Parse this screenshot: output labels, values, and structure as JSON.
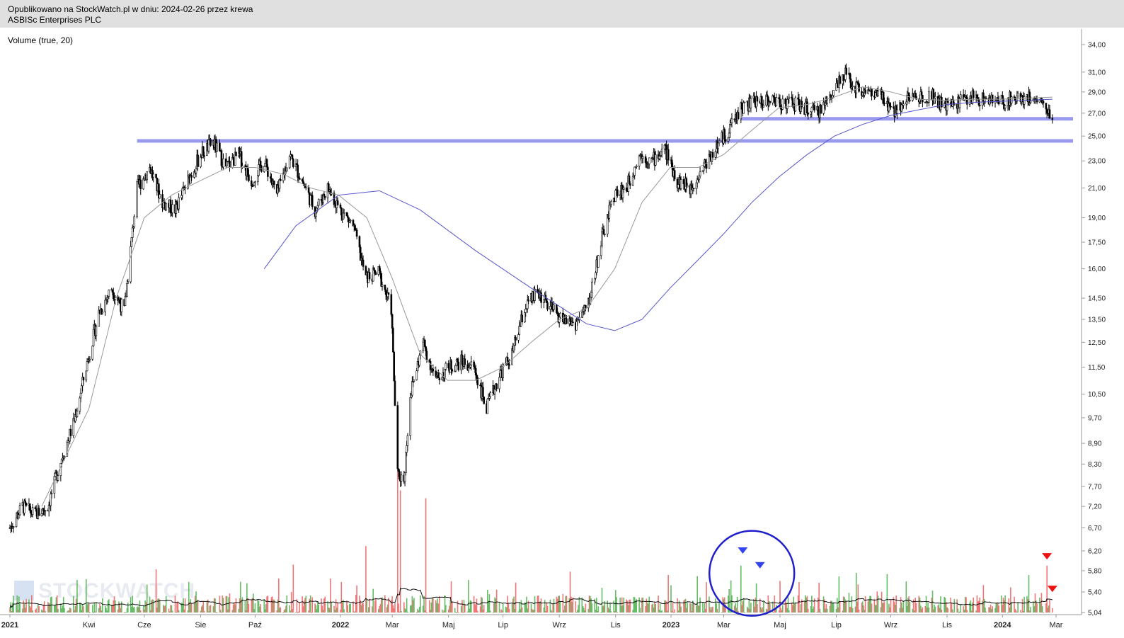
{
  "header": {
    "line1": "Opublikowano na StockWatch.pl w dniu: 2024-02-26 przez krewa",
    "line2": "ASBISc Enterprises PLC"
  },
  "indicator_label": "Volume (true, 20)",
  "watermark": "STOCKWATCH",
  "chart_data": {
    "type": "candlestick",
    "title": "ASBISc Enterprises PLC",
    "y_scale": "log",
    "y_ticks": [
      "34,00",
      "31,00",
      "29,00",
      "27,00",
      "25,00",
      "23,00",
      "21,00",
      "19,00",
      "17,50",
      "16,00",
      "14,50",
      "13,50",
      "12,50",
      "11,50",
      "10,50",
      "9,70",
      "8,90",
      "8,30",
      "7,70",
      "7,20",
      "6,70",
      "6,20",
      "5,80",
      "5,40",
      "5,04"
    ],
    "y_tick_values": [
      34.0,
      31.0,
      29.0,
      27.0,
      25.0,
      23.0,
      21.0,
      19.0,
      17.5,
      16.0,
      14.5,
      13.5,
      12.5,
      11.5,
      10.5,
      9.7,
      8.9,
      8.3,
      7.7,
      7.2,
      6.7,
      6.2,
      5.8,
      5.4,
      5.04
    ],
    "x_ticks": [
      {
        "label": "2021",
        "date": "2021-01-04",
        "bold": true
      },
      {
        "label": "Kwi",
        "date": "2021-04-01"
      },
      {
        "label": "Cze",
        "date": "2021-06-01"
      },
      {
        "label": "Sie",
        "date": "2021-08-02"
      },
      {
        "label": "Paź",
        "date": "2021-10-01"
      },
      {
        "label": "2022",
        "date": "2022-01-03",
        "bold": true
      },
      {
        "label": "Mar",
        "date": "2022-03-01"
      },
      {
        "label": "Maj",
        "date": "2022-05-02"
      },
      {
        "label": "Lip",
        "date": "2022-07-01"
      },
      {
        "label": "Wrz",
        "date": "2022-09-01"
      },
      {
        "label": "Lis",
        "date": "2022-11-02"
      },
      {
        "label": "2023",
        "date": "2023-01-02",
        "bold": true
      },
      {
        "label": "Mar",
        "date": "2023-03-01"
      },
      {
        "label": "Maj",
        "date": "2023-05-02"
      },
      {
        "label": "Lip",
        "date": "2023-07-03"
      },
      {
        "label": "Wrz",
        "date": "2023-09-01"
      },
      {
        "label": "Lis",
        "date": "2023-11-02"
      },
      {
        "label": "2024",
        "date": "2024-01-02",
        "bold": true
      },
      {
        "label": "Mar",
        "date": "2024-03-01"
      }
    ],
    "price_series": {
      "name": "ASBISc",
      "points": [
        [
          "2021-01-04",
          6.7
        ],
        [
          "2021-01-18",
          7.2
        ],
        [
          "2021-02-01",
          7.0
        ],
        [
          "2021-02-15",
          7.2
        ],
        [
          "2021-03-01",
          8.4
        ],
        [
          "2021-03-15",
          9.5
        ],
        [
          "2021-03-29",
          11.5
        ],
        [
          "2021-04-12",
          13.8
        ],
        [
          "2021-04-26",
          15.0
        ],
        [
          "2021-05-10",
          13.9
        ],
        [
          "2021-05-24",
          21.0
        ],
        [
          "2021-06-07",
          22.5
        ],
        [
          "2021-06-21",
          20.0
        ],
        [
          "2021-07-05",
          19.5
        ],
        [
          "2021-07-19",
          21.5
        ],
        [
          "2021-08-02",
          23.5
        ],
        [
          "2021-08-16",
          24.5
        ],
        [
          "2021-08-30",
          22.5
        ],
        [
          "2021-09-13",
          23.5
        ],
        [
          "2021-09-27",
          21.5
        ],
        [
          "2021-10-11",
          23.0
        ],
        [
          "2021-10-25",
          20.5
        ],
        [
          "2021-11-08",
          23.5
        ],
        [
          "2021-11-22",
          21.5
        ],
        [
          "2021-12-06",
          19.5
        ],
        [
          "2021-12-20",
          21.0
        ],
        [
          "2022-01-03",
          19.5
        ],
        [
          "2022-01-17",
          18.5
        ],
        [
          "2022-01-31",
          15.5
        ],
        [
          "2022-02-14",
          15.8
        ],
        [
          "2022-02-28",
          14.0
        ],
        [
          "2022-03-07",
          8.0
        ],
        [
          "2022-03-14",
          7.9
        ],
        [
          "2022-03-21",
          10.5
        ],
        [
          "2022-04-04",
          12.5
        ],
        [
          "2022-04-18",
          11.0
        ],
        [
          "2022-05-02",
          11.5
        ],
        [
          "2022-05-16",
          11.7
        ],
        [
          "2022-05-30",
          11.5
        ],
        [
          "2022-06-13",
          10.0
        ],
        [
          "2022-06-27",
          11.2
        ],
        [
          "2022-07-11",
          12.0
        ],
        [
          "2022-07-25",
          14.0
        ],
        [
          "2022-08-08",
          14.8
        ],
        [
          "2022-08-22",
          14.0
        ],
        [
          "2022-09-05",
          13.5
        ],
        [
          "2022-09-19",
          13.3
        ],
        [
          "2022-10-03",
          14.2
        ],
        [
          "2022-10-17",
          17.5
        ],
        [
          "2022-10-31",
          20.5
        ],
        [
          "2022-11-14",
          21.0
        ],
        [
          "2022-11-28",
          23.5
        ],
        [
          "2022-12-12",
          23.0
        ],
        [
          "2022-12-26",
          24.0
        ],
        [
          "2023-01-09",
          21.5
        ],
        [
          "2023-01-23",
          21.0
        ],
        [
          "2023-02-06",
          22.5
        ],
        [
          "2023-02-20",
          24.0
        ],
        [
          "2023-03-06",
          25.5
        ],
        [
          "2023-03-20",
          27.5
        ],
        [
          "2023-04-03",
          28.0
        ],
        [
          "2023-04-17",
          28.3
        ],
        [
          "2023-05-02",
          28.0
        ],
        [
          "2023-05-15",
          28.0
        ],
        [
          "2023-05-29",
          27.5
        ],
        [
          "2023-06-12",
          27.0
        ],
        [
          "2023-06-26",
          28.5
        ],
        [
          "2023-07-10",
          31.0
        ],
        [
          "2023-07-24",
          29.5
        ],
        [
          "2023-08-07",
          29.0
        ],
        [
          "2023-08-21",
          28.5
        ],
        [
          "2023-09-04",
          27.0
        ],
        [
          "2023-09-18",
          28.5
        ],
        [
          "2023-10-02",
          28.5
        ],
        [
          "2023-10-16",
          28.8
        ],
        [
          "2023-10-30",
          27.5
        ],
        [
          "2023-11-13",
          28.0
        ],
        [
          "2023-11-27",
          28.5
        ],
        [
          "2023-12-11",
          28.3
        ],
        [
          "2024-01-02",
          28.0
        ],
        [
          "2024-01-15",
          28.5
        ],
        [
          "2024-01-29",
          28.5
        ],
        [
          "2024-02-12",
          28.3
        ],
        [
          "2024-02-26",
          26.5
        ]
      ]
    },
    "ma_series": [
      {
        "name": "",
        "color": "#999999",
        "points": [
          [
            "2021-02-08",
            7.2
          ],
          [
            "2021-04-01",
            10.0
          ],
          [
            "2021-05-01",
            14.5
          ],
          [
            "2021-06-01",
            19.0
          ],
          [
            "2021-07-01",
            20.5
          ],
          [
            "2021-08-01",
            21.5
          ],
          [
            "2021-09-01",
            22.5
          ],
          [
            "2021-10-01",
            22.5
          ],
          [
            "2021-11-01",
            22.0
          ],
          [
            "2021-12-01",
            21.0
          ],
          [
            "2022-01-01",
            20.5
          ],
          [
            "2022-02-01",
            19.0
          ],
          [
            "2022-03-01",
            15.5
          ],
          [
            "2022-04-01",
            12.0
          ],
          [
            "2022-05-01",
            11.0
          ],
          [
            "2022-06-01",
            11.0
          ],
          [
            "2022-07-01",
            11.5
          ],
          [
            "2022-08-01",
            12.5
          ],
          [
            "2022-09-01",
            13.5
          ],
          [
            "2022-10-01",
            14.0
          ],
          [
            "2022-11-01",
            16.0
          ],
          [
            "2022-12-01",
            20.0
          ],
          [
            "2023-01-01",
            22.5
          ],
          [
            "2023-02-01",
            22.5
          ],
          [
            "2023-03-01",
            23.5
          ],
          [
            "2023-04-01",
            25.5
          ],
          [
            "2023-05-01",
            27.5
          ],
          [
            "2023-06-01",
            27.8
          ],
          [
            "2023-07-01",
            28.5
          ],
          [
            "2023-08-01",
            29.5
          ],
          [
            "2023-09-01",
            29.0
          ],
          [
            "2023-10-01",
            28.3
          ],
          [
            "2023-11-01",
            28.2
          ],
          [
            "2023-12-01",
            28.3
          ],
          [
            "2024-01-01",
            28.3
          ],
          [
            "2024-02-26",
            28.5
          ]
        ]
      },
      {
        "name": "",
        "color": "#5555cc",
        "points": [
          [
            "2021-10-11",
            16.0
          ],
          [
            "2021-11-15",
            18.5
          ],
          [
            "2022-01-01",
            20.5
          ],
          [
            "2022-02-15",
            20.8
          ],
          [
            "2022-04-01",
            19.5
          ],
          [
            "2022-06-01",
            17.0
          ],
          [
            "2022-08-01",
            15.0
          ],
          [
            "2022-10-01",
            13.3
          ],
          [
            "2022-11-01",
            13.0
          ],
          [
            "2022-12-01",
            13.5
          ],
          [
            "2023-01-01",
            15.0
          ],
          [
            "2023-02-01",
            16.5
          ],
          [
            "2023-03-01",
            18.0
          ],
          [
            "2023-04-01",
            20.0
          ],
          [
            "2023-05-01",
            21.8
          ],
          [
            "2023-06-01",
            23.5
          ],
          [
            "2023-07-01",
            25.0
          ],
          [
            "2023-08-01",
            26.0
          ],
          [
            "2023-09-01",
            26.8
          ],
          [
            "2023-10-01",
            27.3
          ],
          [
            "2023-11-01",
            27.8
          ],
          [
            "2023-12-01",
            28.0
          ],
          [
            "2024-02-26",
            28.3
          ]
        ]
      }
    ],
    "horizontal_lines": [
      {
        "value": 24.6,
        "from": "2021-05-24",
        "to": "2024-03-01",
        "color": "#9999ee"
      },
      {
        "value": 26.5,
        "from": "2023-03-20",
        "to": "2024-03-01",
        "color": "#9999ee"
      }
    ],
    "volume": {
      "average_period": 20,
      "spikes": [
        {
          "date": "2022-03-07",
          "value": 8.1
        },
        {
          "date": "2022-03-10",
          "value": 7.6
        },
        {
          "date": "2022-04-07",
          "value": 7.4
        },
        {
          "date": "2023-03-20",
          "value": 5.9
        },
        {
          "date": "2024-02-20",
          "value": 5.9
        },
        {
          "date": "2022-01-31",
          "value": 6.3
        }
      ]
    },
    "annotations": [
      {
        "type": "circle",
        "date": "2023-04-01",
        "value": 5.75,
        "color": "#2020cc"
      },
      {
        "type": "arrow-down",
        "date": "2023-03-22",
        "value": 6.2,
        "color": "#3344ee"
      },
      {
        "type": "arrow-down",
        "date": "2023-04-10",
        "value": 5.9,
        "color": "#3344ee"
      },
      {
        "type": "arrow-down",
        "date": "2024-02-20",
        "value": 6.08,
        "color": "#ee1111"
      },
      {
        "type": "arrow-down",
        "date": "2024-02-26",
        "value": 5.45,
        "color": "#ee1111"
      }
    ],
    "grid": false,
    "legend": "none"
  }
}
